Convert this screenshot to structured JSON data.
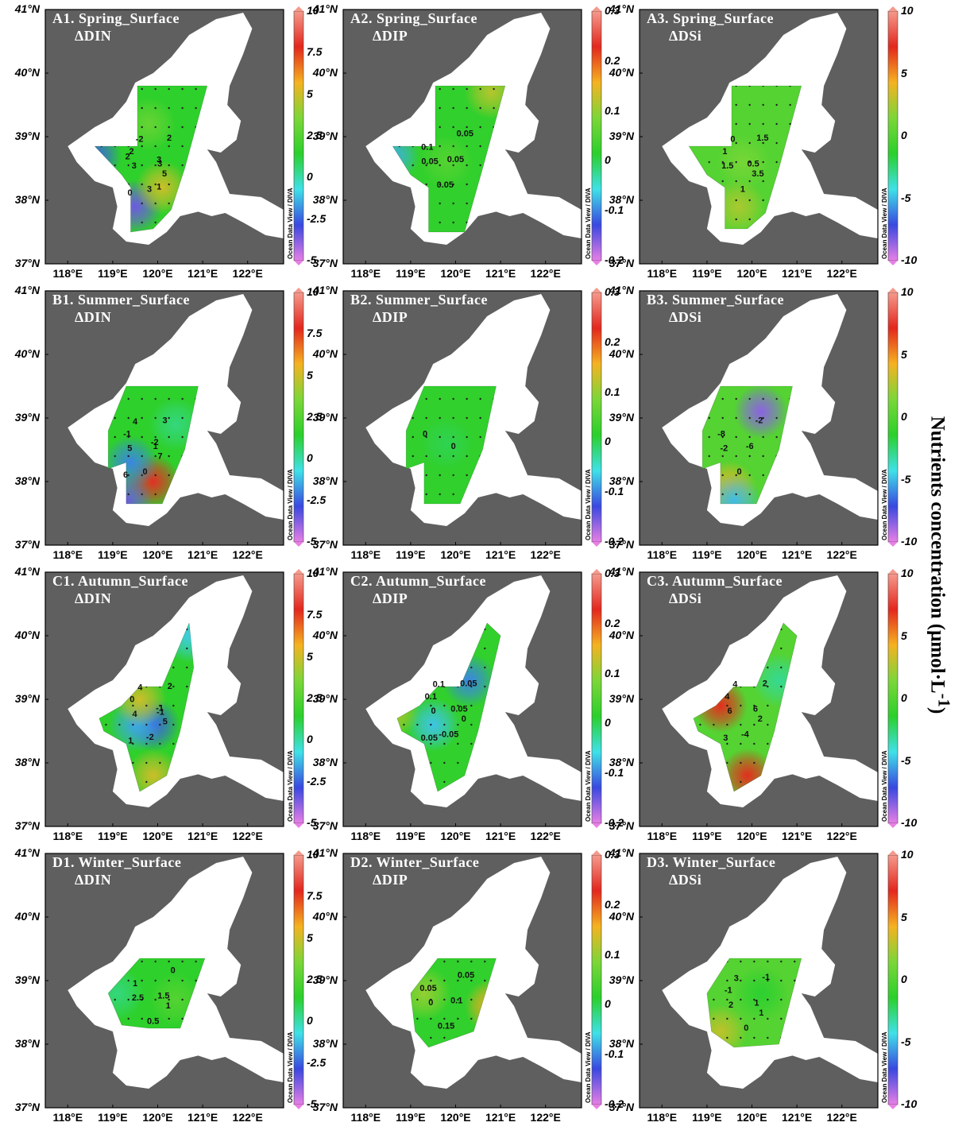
{
  "figure": {
    "colorbar_label": "Nutrients concentration (μmol·L",
    "colorbar_label_sup": "-1",
    "colorbar_label_end": ")",
    "watermark": "Ocean Data View / DIVA",
    "lat_labels": [
      "41°N",
      "40°N",
      "39°N",
      "38°N",
      "37°N"
    ],
    "lon_labels": [
      "118°E",
      "119°E",
      "120°E",
      "121°E",
      "122°E"
    ],
    "land_color": "#5f5f5f",
    "sea_color": "#ffffff",
    "colormap": [
      "#e87fe6",
      "#3948e0",
      "#3fe1e8",
      "#2bd02b",
      "#7cd638",
      "#f5b221",
      "#e3271e",
      "#f59a8c"
    ],
    "colorbars": {
      "DIN": {
        "min": -5,
        "max": 10,
        "ticks": [
          "10",
          "7.5",
          "5",
          "2.5",
          "0",
          "-2.5",
          "-5"
        ]
      },
      "DIP": {
        "min": -0.2,
        "max": 0.3,
        "ticks": [
          "0.3",
          "0.2",
          "0.1",
          "0",
          "-0.1",
          "-0.2"
        ]
      },
      "DSi": {
        "min": -10,
        "max": 10,
        "ticks": [
          "10",
          "5",
          "0",
          "-5",
          "-10"
        ]
      }
    }
  },
  "panels": [
    {
      "id": "A1",
      "title": "A1. Spring_Surface",
      "variable": "ΔDIN",
      "scale": "DIN",
      "contour_labels": [
        "3",
        "2",
        "3",
        "2",
        "3",
        "5",
        "-2",
        "0",
        "3",
        "2",
        "1"
      ],
      "features": [
        {
          "lon": 118.6,
          "lat": 38.7,
          "value": -2.5
        },
        {
          "lon": 119.5,
          "lat": 37.9,
          "value": -3.5
        },
        {
          "lon": 120.1,
          "lat": 38.2,
          "value": 5
        },
        {
          "lon": 119.8,
          "lat": 39.2,
          "value": 3
        }
      ]
    },
    {
      "id": "A2",
      "title": "A2. Spring_Surface",
      "variable": "ΔDIP",
      "scale": "DIP",
      "contour_labels": [
        "0.05",
        "0.1",
        "0.05",
        "0.05",
        "0.05"
      ],
      "features": [
        {
          "lon": 118.6,
          "lat": 38.7,
          "value": -0.08
        },
        {
          "lon": 120.8,
          "lat": 39.7,
          "value": 0.12
        },
        {
          "lon": 119.8,
          "lat": 38.6,
          "value": 0.05
        }
      ]
    },
    {
      "id": "A3",
      "title": "A3. Spring_Surface",
      "variable": "ΔDSi",
      "scale": "DSi",
      "contour_labels": [
        "0.5",
        "1",
        "1",
        "1.5",
        "1.5",
        "3.5",
        "0"
      ],
      "features": [
        {
          "lon": 119.8,
          "lat": 38.6,
          "value": 1.2
        },
        {
          "lon": 119.7,
          "lat": 37.9,
          "value": 2.5
        }
      ]
    },
    {
      "id": "B1",
      "title": "B1. Summer_Surface",
      "variable": "ΔDIN",
      "scale": "DIN",
      "contour_labels": [
        "1",
        "-1",
        "0",
        "3",
        "5",
        "7",
        "4",
        "6",
        "-2"
      ],
      "features": [
        {
          "lon": 119.9,
          "lat": 38.0,
          "value": 8
        },
        {
          "lon": 119.4,
          "lat": 38.3,
          "value": -2
        },
        {
          "lon": 119.3,
          "lat": 37.7,
          "value": -3.5
        },
        {
          "lon": 120.4,
          "lat": 38.9,
          "value": 0.5
        }
      ]
    },
    {
      "id": "B2",
      "title": "B2. Summer_Surface",
      "variable": "ΔDIP",
      "scale": "DIP",
      "contour_labels": [
        "0",
        "0"
      ],
      "features": [
        {
          "lon": 119.8,
          "lat": 38.6,
          "value": 0.0
        }
      ]
    },
    {
      "id": "B3",
      "title": "B3. Summer_Surface",
      "variable": "ΔDSi",
      "scale": "DSi",
      "contour_labels": [
        "-6",
        "-8",
        "0",
        "-2",
        "-2"
      ],
      "features": [
        {
          "lon": 120.2,
          "lat": 39.1,
          "value": -8.5
        },
        {
          "lon": 119.5,
          "lat": 37.9,
          "value": 4
        },
        {
          "lon": 119.6,
          "lat": 37.7,
          "value": -5
        }
      ]
    },
    {
      "id": "C1",
      "title": "C1. Autumn_Surface",
      "variable": "ΔDIN",
      "scale": "DIN",
      "contour_labels": [
        "-1",
        "0",
        "-2",
        "2",
        "4",
        "5",
        "4",
        "1",
        "-1"
      ],
      "features": [
        {
          "lon": 119.9,
          "lat": 38.6,
          "value": -2.5
        },
        {
          "lon": 119.5,
          "lat": 38.6,
          "value": -1.5
        },
        {
          "lon": 119.6,
          "lat": 39.0,
          "value": 5
        },
        {
          "lon": 119.9,
          "lat": 37.8,
          "value": 5
        },
        {
          "lon": 120.7,
          "lat": 40.0,
          "value": -1
        }
      ]
    },
    {
      "id": "C2",
      "title": "C2. Autumn_Surface",
      "variable": "ΔDIP",
      "scale": "DIP",
      "contour_labels": [
        "0.05",
        "0.1",
        "-0.05",
        "0.05",
        "0",
        "0",
        "0.1",
        "0.05"
      ],
      "features": [
        {
          "lon": 120.3,
          "lat": 39.3,
          "value": -0.1
        },
        {
          "lon": 119.5,
          "lat": 38.6,
          "value": -0.07
        },
        {
          "lon": 118.6,
          "lat": 38.8,
          "value": 0.12
        }
      ]
    },
    {
      "id": "C3",
      "title": "C3. Autumn_Surface",
      "variable": "ΔDSi",
      "scale": "DSi",
      "contour_labels": [
        "6",
        "4",
        "-4",
        "2",
        "6",
        "2",
        "4",
        "3"
      ],
      "features": [
        {
          "lon": 119.3,
          "lat": 38.9,
          "value": 7
        },
        {
          "lon": 119.9,
          "lat": 37.8,
          "value": 7
        },
        {
          "lon": 120.6,
          "lat": 39.3,
          "value": -3
        }
      ]
    },
    {
      "id": "D1",
      "title": "D1. Winter_Surface",
      "variable": "ΔDIN",
      "scale": "DIN",
      "contour_labels": [
        "1.5",
        "1",
        "0.5",
        "0",
        "2.5",
        "1"
      ],
      "features": [
        {
          "lon": 119.1,
          "lat": 38.8,
          "value": 0.5
        },
        {
          "lon": 120.4,
          "lat": 38.7,
          "value": 2.5
        }
      ]
    },
    {
      "id": "D2",
      "title": "D2. Winter_Surface",
      "variable": "ΔDIP",
      "scale": "DIP",
      "contour_labels": [
        "0.1",
        "0.05",
        "0.15",
        "0.05",
        "0"
      ],
      "features": [
        {
          "lon": 120.8,
          "lat": 38.6,
          "value": 0.16
        },
        {
          "lon": 119.3,
          "lat": 38.8,
          "value": 0.1
        }
      ]
    },
    {
      "id": "D3",
      "title": "D3. Winter_Surface",
      "variable": "ΔDSi",
      "scale": "DSi",
      "contour_labels": [
        "1",
        "-1",
        "0",
        "-1",
        "2",
        "1",
        "3"
      ],
      "features": [
        {
          "lon": 119.3,
          "lat": 38.2,
          "value": 3
        },
        {
          "lon": 120.2,
          "lat": 38.8,
          "value": -1.5
        }
      ]
    }
  ]
}
